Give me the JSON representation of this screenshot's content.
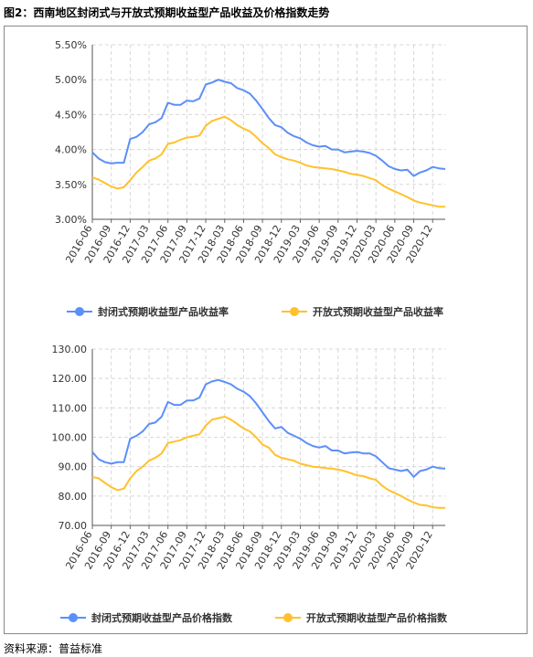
{
  "figure": {
    "title": "图2：西南地区封闭式与开放式预期收益型产品收益及价格指数走势",
    "source": "资料来源：普益标准"
  },
  "x_labels": [
    "2016-06",
    "2016-09",
    "2016-12",
    "2017-03",
    "2017-06",
    "2017-09",
    "2017-12",
    "2018-03",
    "2018-06",
    "2018-09",
    "2018-12",
    "2019-03",
    "2019-06",
    "2019-09",
    "2019-12",
    "2020-03",
    "2020-06",
    "2020-09",
    "2020-12"
  ],
  "chart_data": [
    {
      "type": "line",
      "x": [
        "2016-06",
        "2016-07",
        "2016-08",
        "2016-09",
        "2016-10",
        "2016-11",
        "2016-12",
        "2017-01",
        "2017-02",
        "2017-03",
        "2017-04",
        "2017-05",
        "2017-06",
        "2017-07",
        "2017-08",
        "2017-09",
        "2017-10",
        "2017-11",
        "2017-12",
        "2018-01",
        "2018-02",
        "2018-03",
        "2018-04",
        "2018-05",
        "2018-06",
        "2018-07",
        "2018-08",
        "2018-09",
        "2018-10",
        "2018-11",
        "2018-12",
        "2019-01",
        "2019-02",
        "2019-03",
        "2019-04",
        "2019-05",
        "2019-06",
        "2019-07",
        "2019-08",
        "2019-09",
        "2019-10",
        "2019-11",
        "2019-12",
        "2020-01",
        "2020-02",
        "2020-03",
        "2020-04",
        "2020-05",
        "2020-06",
        "2020-07",
        "2020-08",
        "2020-09",
        "2020-10",
        "2020-11",
        "2020-12",
        "2021-01",
        "2021-02"
      ],
      "y_ticks": [
        "3.00%",
        "3.50%",
        "4.00%",
        "4.50%",
        "5.00%",
        "5.50%"
      ],
      "ylim": [
        3.0,
        5.5
      ],
      "grid": true,
      "legend_position": "bottom",
      "series": [
        {
          "name": "封闭式预期收益型产品收益率",
          "color": "#5B8FF9",
          "values": [
            3.96,
            3.87,
            3.82,
            3.8,
            3.81,
            3.81,
            4.15,
            4.18,
            4.25,
            4.36,
            4.39,
            4.45,
            4.67,
            4.64,
            4.64,
            4.7,
            4.69,
            4.73,
            4.93,
            4.96,
            5.0,
            4.97,
            4.95,
            4.88,
            4.85,
            4.8,
            4.7,
            4.58,
            4.45,
            4.35,
            4.32,
            4.24,
            4.19,
            4.16,
            4.1,
            4.06,
            4.04,
            4.05,
            4.0,
            4.0,
            3.96,
            3.97,
            3.98,
            3.97,
            3.95,
            3.91,
            3.84,
            3.76,
            3.72,
            3.7,
            3.71,
            3.62,
            3.67,
            3.7,
            3.75,
            3.73,
            3.72
          ]
        },
        {
          "name": "开放式预期收益型产品收益率",
          "color": "#FFC12C",
          "values": [
            3.6,
            3.57,
            3.52,
            3.47,
            3.44,
            3.46,
            3.56,
            3.67,
            3.75,
            3.84,
            3.87,
            3.93,
            4.08,
            4.1,
            4.14,
            4.17,
            4.18,
            4.2,
            4.34,
            4.41,
            4.44,
            4.47,
            4.42,
            4.35,
            4.3,
            4.26,
            4.18,
            4.09,
            4.02,
            3.93,
            3.89,
            3.86,
            3.84,
            3.81,
            3.77,
            3.75,
            3.74,
            3.73,
            3.72,
            3.7,
            3.68,
            3.65,
            3.64,
            3.62,
            3.59,
            3.56,
            3.49,
            3.44,
            3.4,
            3.36,
            3.32,
            3.27,
            3.24,
            3.22,
            3.2,
            3.18,
            3.18
          ]
        }
      ]
    },
    {
      "type": "line",
      "x": [
        "2016-06",
        "2016-07",
        "2016-08",
        "2016-09",
        "2016-10",
        "2016-11",
        "2016-12",
        "2017-01",
        "2017-02",
        "2017-03",
        "2017-04",
        "2017-05",
        "2017-06",
        "2017-07",
        "2017-08",
        "2017-09",
        "2017-10",
        "2017-11",
        "2017-12",
        "2018-01",
        "2018-02",
        "2018-03",
        "2018-04",
        "2018-05",
        "2018-06",
        "2018-07",
        "2018-08",
        "2018-09",
        "2018-10",
        "2018-11",
        "2018-12",
        "2019-01",
        "2019-02",
        "2019-03",
        "2019-04",
        "2019-05",
        "2019-06",
        "2019-07",
        "2019-08",
        "2019-09",
        "2019-10",
        "2019-11",
        "2019-12",
        "2020-01",
        "2020-02",
        "2020-03",
        "2020-04",
        "2020-05",
        "2020-06",
        "2020-07",
        "2020-08",
        "2020-09",
        "2020-10",
        "2020-11",
        "2020-12",
        "2021-01",
        "2021-02"
      ],
      "y_ticks": [
        "70.00",
        "80.00",
        "90.00",
        "100.00",
        "110.00",
        "120.00",
        "130.00"
      ],
      "ylim": [
        70,
        130
      ],
      "grid": true,
      "legend_position": "bottom",
      "series": [
        {
          "name": "封闭式预期收益型产品价格指数",
          "color": "#5B8FF9",
          "values": [
            95.0,
            92.5,
            91.5,
            91.0,
            91.5,
            91.5,
            99.5,
            100.5,
            102.0,
            104.5,
            105.0,
            107.0,
            112.0,
            111.0,
            111.0,
            112.5,
            112.5,
            113.5,
            118.0,
            119.0,
            119.5,
            118.8,
            118.0,
            116.5,
            115.5,
            114.0,
            111.5,
            108.5,
            105.5,
            103.0,
            103.5,
            101.5,
            100.5,
            99.5,
            98.0,
            97.0,
            96.5,
            97.0,
            95.5,
            95.5,
            94.5,
            94.8,
            95.0,
            94.5,
            94.5,
            93.5,
            91.5,
            89.5,
            89.0,
            88.5,
            89.0,
            86.5,
            88.5,
            89.0,
            90.0,
            89.5,
            89.3
          ]
        },
        {
          "name": "开放式预期收益型产品价格指数",
          "color": "#FFC12C",
          "values": [
            86.5,
            86.0,
            84.5,
            83.0,
            82.0,
            82.5,
            86.0,
            88.5,
            90.0,
            92.0,
            93.0,
            94.5,
            98.0,
            98.5,
            99.0,
            100.0,
            100.5,
            101.0,
            104.0,
            106.0,
            106.5,
            107.0,
            106.0,
            104.5,
            103.0,
            102.0,
            100.0,
            97.5,
            96.5,
            94.0,
            93.0,
            92.5,
            92.0,
            91.0,
            90.5,
            90.0,
            89.8,
            89.5,
            89.3,
            89.0,
            88.5,
            87.8,
            87.0,
            86.8,
            86.0,
            85.5,
            83.5,
            82.0,
            81.0,
            80.0,
            78.8,
            77.8,
            77.0,
            76.8,
            76.2,
            76.0,
            76.0
          ]
        }
      ]
    }
  ]
}
